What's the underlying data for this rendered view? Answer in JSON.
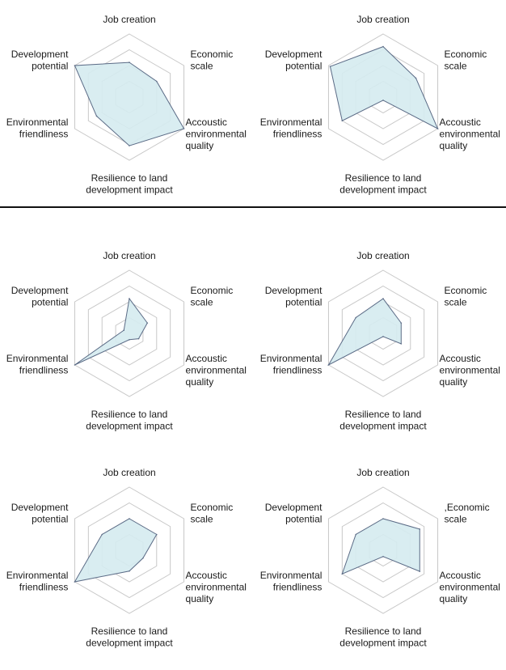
{
  "layout": {
    "divider_after_row": 1
  },
  "colors": {
    "grid": "#c8c8c8",
    "fill": "#d5ebef",
    "stroke": "#5b6b86"
  },
  "chart_data": [
    {
      "type": "radar",
      "axes": [
        "Job creation",
        "Economic scale",
        "Accoustic environmental quality",
        "Resilience to land development impact",
        "Environmental friendliness",
        "Development potential"
      ],
      "axis_label_lines": [
        [
          "Job creation"
        ],
        [
          "Economic",
          "scale"
        ],
        [
          "Accoustic",
          "environmental",
          "quality"
        ],
        [
          "Resilience to land",
          "development impact"
        ],
        [
          "Environmental",
          "friendliness"
        ],
        [
          "Development",
          "potential"
        ]
      ],
      "levels": 4,
      "range": [
        0,
        1
      ],
      "values": [
        0.55,
        0.5,
        1.0,
        0.77,
        0.6,
        1.0
      ]
    },
    {
      "type": "radar",
      "axes": [
        "Job creation",
        "Economic scale",
        "Accoustic environmental quality",
        "Resilience to land development impact",
        "Environmental friendliness",
        "Development potential"
      ],
      "axis_label_lines": [
        [
          "Job creation"
        ],
        [
          "Economic",
          "scale"
        ],
        [
          "Accoustic",
          "environmental",
          "quality"
        ],
        [
          "Resilience to land",
          "development impact"
        ],
        [
          "Environmental",
          "friendliness"
        ],
        [
          "Development",
          "potential"
        ]
      ],
      "levels": 4,
      "range": [
        0,
        1
      ],
      "values": [
        0.8,
        0.6,
        1.0,
        0.05,
        0.75,
        0.97
      ]
    },
    {
      "type": "radar",
      "axes": [
        "Job creation",
        "Economic scale",
        "Accoustic environmental quality",
        "Resilience to land development impact",
        "Environmental friendliness",
        "Development potential"
      ],
      "axis_label_lines": [
        [
          "Job creation"
        ],
        [
          "Economic",
          "scale"
        ],
        [
          "Accoustic",
          "environmental",
          "quality"
        ],
        [
          "Resilience to land",
          "development impact"
        ],
        [
          "Environmental",
          "friendliness"
        ],
        [
          "Development",
          "potential"
        ]
      ],
      "levels": 4,
      "range": [
        0,
        1
      ],
      "values": [
        0.55,
        0.33,
        0.17,
        0.1,
        1.0,
        0.1
      ]
    },
    {
      "type": "radar",
      "axes": [
        "Job creation",
        "Economic scale",
        "Accoustic environmental quality",
        "Resilience to land development impact",
        "Environmental friendliness",
        "Development potential"
      ],
      "axis_label_lines": [
        [
          "Job creation"
        ],
        [
          "Economic",
          "scale"
        ],
        [
          "Accoustic",
          "environmental",
          "quality"
        ],
        [
          "Resilience to land",
          "development impact"
        ],
        [
          "Environmental",
          "friendliness"
        ],
        [
          "Development",
          "potential"
        ]
      ],
      "levels": 4,
      "range": [
        0,
        1
      ],
      "values": [
        0.55,
        0.33,
        0.33,
        0.05,
        1.0,
        0.5
      ]
    },
    {
      "type": "radar",
      "axes": [
        "Job creation",
        "Economic scale",
        "Accoustic environmental quality",
        "Resilience to land development impact",
        "Environmental friendliness",
        "Development potential"
      ],
      "axis_label_lines": [
        [
          "Job creation"
        ],
        [
          "Economic",
          "scale"
        ],
        [
          "Accoustic",
          "environmental",
          "quality"
        ],
        [
          "Resilience to land",
          "development impact"
        ],
        [
          "Environmental",
          "friendliness"
        ],
        [
          "Development",
          "potential"
        ]
      ],
      "levels": 4,
      "range": [
        0,
        1
      ],
      "values": [
        0.5,
        0.5,
        0.25,
        0.33,
        1.0,
        0.5
      ]
    },
    {
      "type": "radar",
      "axes": [
        "Job creation",
        "Economic scale",
        "Accoustic environmental quality",
        "Resilience to land development impact",
        "Environmental friendliness",
        "Development potential"
      ],
      "axis_label_lines": [
        [
          "Job creation"
        ],
        [
          ",Economic",
          "scale"
        ],
        [
          "Accoustic",
          "environmental",
          "quality"
        ],
        [
          "Resilience to land",
          "development impact"
        ],
        [
          "Environmental",
          "friendliness"
        ],
        [
          "Development",
          "potential"
        ]
      ],
      "levels": 4,
      "range": [
        0,
        1
      ],
      "values": [
        0.5,
        0.67,
        0.67,
        0.1,
        0.75,
        0.5
      ]
    }
  ]
}
